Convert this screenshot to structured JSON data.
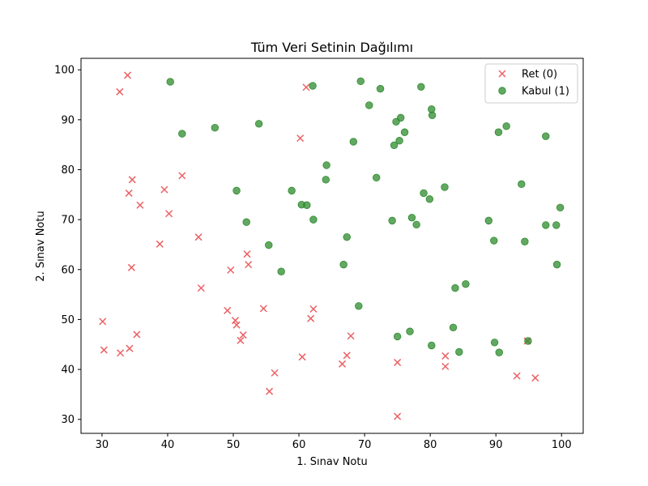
{
  "chart_data": {
    "type": "scatter",
    "title": "Tüm Veri Setinin Dağılımı",
    "xlabel": "1. Sınav Notu",
    "ylabel": "2. Sınav Notu",
    "xlim": [
      26.8,
      103.3
    ],
    "ylim": [
      27.2,
      102.3
    ],
    "xticks": [
      30,
      40,
      50,
      60,
      70,
      80,
      90,
      100
    ],
    "yticks": [
      30,
      40,
      50,
      60,
      70,
      80,
      90,
      100
    ],
    "grid": false,
    "legend_position": "top-right",
    "series": [
      {
        "name": "Ret (0)",
        "marker": "x",
        "color": "#e8474b",
        "points": [
          [
            34.6,
            78.0
          ],
          [
            30.3,
            43.9
          ],
          [
            35.8,
            72.9
          ],
          [
            45.1,
            56.3
          ],
          [
            61.1,
            96.5
          ],
          [
            60.2,
            86.3
          ],
          [
            33.9,
            98.9
          ],
          [
            39.5,
            76.0
          ],
          [
            42.2,
            78.8
          ],
          [
            40.2,
            71.2
          ],
          [
            34.2,
            44.2
          ],
          [
            49.1,
            51.8
          ],
          [
            32.8,
            43.3
          ],
          [
            30.1,
            49.6
          ],
          [
            35.3,
            47.0
          ],
          [
            34.5,
            60.4
          ],
          [
            50.3,
            49.8
          ],
          [
            50.5,
            48.9
          ],
          [
            38.8,
            65.1
          ],
          [
            62.2,
            52.1
          ],
          [
            61.8,
            50.2
          ],
          [
            51.5,
            46.9
          ],
          [
            52.3,
            61.0
          ],
          [
            52.1,
            63.1
          ],
          [
            55.5,
            35.6
          ],
          [
            56.3,
            39.3
          ],
          [
            51.1,
            45.8
          ],
          [
            32.7,
            95.6
          ],
          [
            44.7,
            66.5
          ],
          [
            60.5,
            42.5
          ],
          [
            54.6,
            52.2
          ],
          [
            66.6,
            41.1
          ],
          [
            49.6,
            59.9
          ],
          [
            67.3,
            42.8
          ],
          [
            67.9,
            46.7
          ],
          [
            82.3,
            42.7
          ],
          [
            82.3,
            40.6
          ],
          [
            75.0,
            41.4
          ],
          [
            75.0,
            30.6
          ],
          [
            93.2,
            38.7
          ],
          [
            96.0,
            38.3
          ],
          [
            34.1,
            75.3
          ],
          [
            94.8,
            45.7
          ]
        ]
      },
      {
        "name": "Kabul (1)",
        "marker": "o",
        "color": "#2e8b2e",
        "points": [
          [
            40.4,
            97.6
          ],
          [
            42.2,
            87.2
          ],
          [
            47.2,
            88.4
          ],
          [
            53.9,
            89.2
          ],
          [
            50.5,
            75.8
          ],
          [
            52.0,
            69.5
          ],
          [
            55.4,
            64.9
          ],
          [
            57.3,
            59.6
          ],
          [
            58.9,
            75.8
          ],
          [
            60.4,
            73.0
          ],
          [
            61.2,
            72.9
          ],
          [
            62.1,
            96.8
          ],
          [
            62.2,
            70.0
          ],
          [
            64.1,
            78.0
          ],
          [
            64.2,
            80.9
          ],
          [
            66.8,
            61.0
          ],
          [
            67.3,
            66.5
          ],
          [
            68.3,
            85.6
          ],
          [
            69.1,
            52.7
          ],
          [
            69.4,
            97.7
          ],
          [
            70.7,
            92.9
          ],
          [
            71.8,
            78.4
          ],
          [
            72.4,
            96.2
          ],
          [
            74.2,
            69.8
          ],
          [
            74.5,
            84.9
          ],
          [
            74.8,
            89.6
          ],
          [
            75.0,
            46.6
          ],
          [
            75.3,
            85.8
          ],
          [
            75.5,
            90.4
          ],
          [
            76.1,
            87.5
          ],
          [
            76.9,
            47.6
          ],
          [
            77.2,
            70.4
          ],
          [
            77.9,
            69.0
          ],
          [
            78.6,
            96.6
          ],
          [
            79.0,
            75.3
          ],
          [
            79.9,
            74.1
          ],
          [
            80.2,
            92.1
          ],
          [
            80.3,
            90.9
          ],
          [
            80.2,
            44.8
          ],
          [
            82.2,
            76.5
          ],
          [
            83.5,
            48.4
          ],
          [
            83.8,
            56.3
          ],
          [
            84.4,
            43.5
          ],
          [
            85.4,
            57.1
          ],
          [
            88.9,
            69.8
          ],
          [
            89.7,
            65.8
          ],
          [
            89.8,
            45.4
          ],
          [
            90.4,
            87.5
          ],
          [
            90.5,
            43.4
          ],
          [
            91.6,
            88.7
          ],
          [
            93.9,
            77.1
          ],
          [
            94.4,
            65.6
          ],
          [
            97.6,
            86.7
          ],
          [
            97.6,
            68.9
          ],
          [
            99.2,
            68.9
          ],
          [
            99.3,
            61.0
          ],
          [
            99.8,
            72.4
          ],
          [
            94.9,
            45.7
          ]
        ]
      }
    ]
  }
}
